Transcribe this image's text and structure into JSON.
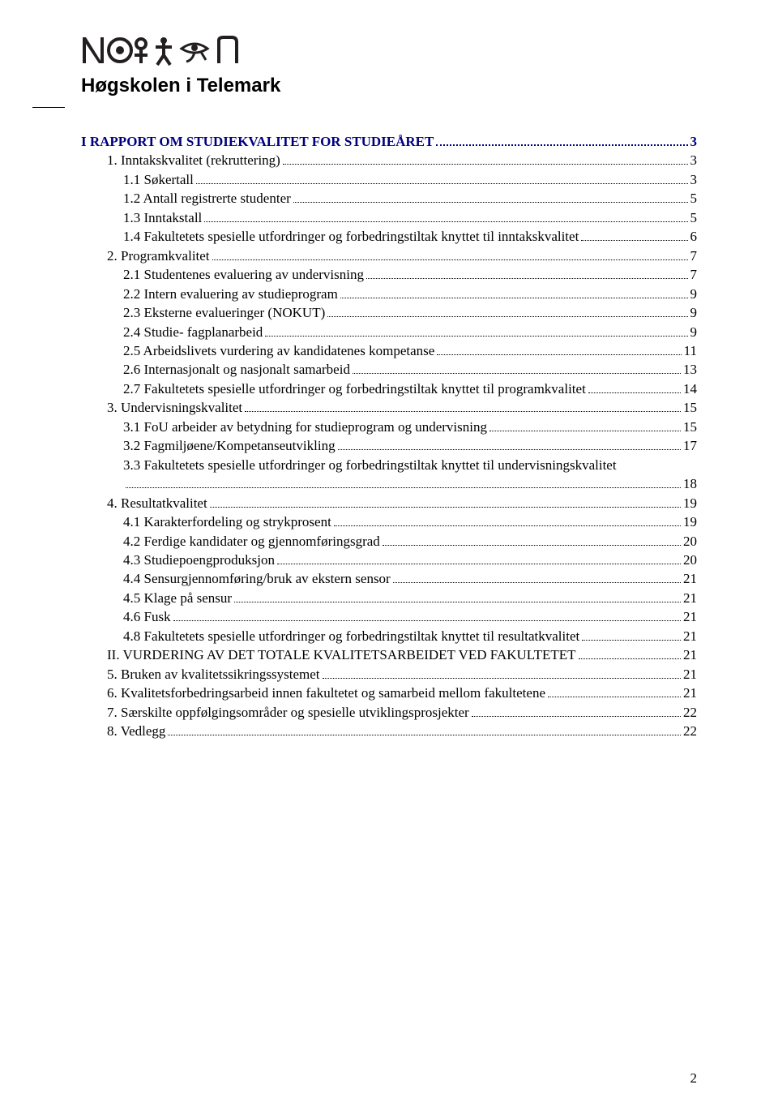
{
  "brand": "Høgskolen i Telemark",
  "page_number": "2",
  "colors": {
    "heading_color": "#00007f",
    "text_color": "#000000",
    "background": "#ffffff"
  },
  "fonts": {
    "brand_family": "Arial",
    "body_family": "Times New Roman",
    "body_size_pt": 12
  },
  "toc": [
    {
      "level": 1,
      "bold": true,
      "title": "I RAPPORT OM STUDIEKVALITET FOR STUDIEÅRET",
      "page": "3"
    },
    {
      "level": 2,
      "bold": false,
      "title": "1. Inntakskvalitet (rekruttering)",
      "page": "3"
    },
    {
      "level": 3,
      "bold": false,
      "title": "1.1 Søkertall",
      "page": "3"
    },
    {
      "level": 3,
      "bold": false,
      "title": "1.2 Antall registrerte studenter",
      "page": "5"
    },
    {
      "level": 3,
      "bold": false,
      "title": "1.3 Inntakstall",
      "page": "5"
    },
    {
      "level": 3,
      "bold": false,
      "title": "1.4 Fakultetets spesielle utfordringer og forbedringstiltak knyttet til inntakskvalitet",
      "page": "6"
    },
    {
      "level": 2,
      "bold": false,
      "title": "2. Programkvalitet",
      "page": "7"
    },
    {
      "level": 3,
      "bold": false,
      "title": "2.1 Studentenes evaluering av undervisning",
      "page": "7"
    },
    {
      "level": 3,
      "bold": false,
      "title": "2.2 Intern evaluering av studieprogram",
      "page": "9"
    },
    {
      "level": 3,
      "bold": false,
      "title": "2.3 Eksterne evalueringer (NOKUT)",
      "page": "9"
    },
    {
      "level": 3,
      "bold": false,
      "title": "2.4 Studie- fagplanarbeid",
      "page": "9"
    },
    {
      "level": 3,
      "bold": false,
      "title": "2.5 Arbeidslivets vurdering av kandidatenes kompetanse",
      "page": "11"
    },
    {
      "level": 3,
      "bold": false,
      "title": "2.6 Internasjonalt og nasjonalt samarbeid",
      "page": "13"
    },
    {
      "level": 3,
      "bold": false,
      "title": "2.7 Fakultetets spesielle utfordringer og forbedringstiltak knyttet til programkvalitet",
      "page": "14"
    },
    {
      "level": 2,
      "bold": false,
      "title": "3. Undervisningskvalitet",
      "page": "15"
    },
    {
      "level": 3,
      "bold": false,
      "title": "3.1 FoU arbeider av betydning for studieprogram og undervisning",
      "page": "15"
    },
    {
      "level": 3,
      "bold": false,
      "title": "3.2 Fagmiljøene/Kompetanseutvikling",
      "page": "17"
    },
    {
      "level": 3,
      "bold": false,
      "title": "3.3 Fakultetets spesielle utfordringer og forbedringstiltak knyttet til undervisningskvalitet",
      "page": "18",
      "wrap": true
    },
    {
      "level": 2,
      "bold": false,
      "title": "4. Resultatkvalitet",
      "page": "19"
    },
    {
      "level": 3,
      "bold": false,
      "title": "4.1 Karakterfordeling og strykprosent",
      "page": "19"
    },
    {
      "level": 3,
      "bold": false,
      "title": "4.2 Ferdige kandidater og gjennomføringsgrad",
      "page": "20"
    },
    {
      "level": 3,
      "bold": false,
      "title": "4.3 Studiepoengproduksjon",
      "page": "20"
    },
    {
      "level": 3,
      "bold": false,
      "title": "4.4 Sensurgjennomføring/bruk av ekstern sensor",
      "page": "21"
    },
    {
      "level": 3,
      "bold": false,
      "title": "4.5 Klage på sensur",
      "page": "21"
    },
    {
      "level": 3,
      "bold": false,
      "title": "4.6 Fusk",
      "page": "21"
    },
    {
      "level": 3,
      "bold": false,
      "title": "4.8 Fakultetets spesielle utfordringer og forbedringstiltak knyttet til resultatkvalitet",
      "page": "21"
    },
    {
      "level": 2,
      "bold": false,
      "title": "II. VURDERING AV DET TOTALE KVALITETSARBEIDET VED FAKULTETET",
      "page": "21"
    },
    {
      "level": 2,
      "bold": false,
      "title": "5. Bruken av kvalitetssikringssystemet",
      "page": "21"
    },
    {
      "level": 2,
      "bold": false,
      "title": "6. Kvalitetsforbedringsarbeid innen fakultetet og samarbeid mellom fakultetene",
      "page": "21"
    },
    {
      "level": 2,
      "bold": false,
      "title": "7. Særskilte oppfølgingsområder og spesielle utviklingsprosjekter",
      "page": "22"
    },
    {
      "level": 2,
      "bold": false,
      "title": "8. Vedlegg",
      "page": "22"
    }
  ]
}
